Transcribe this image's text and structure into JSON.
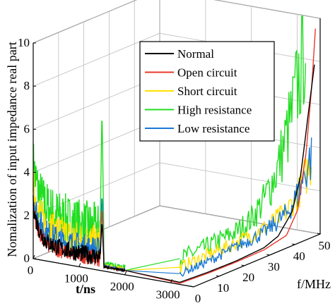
{
  "chart_data": {
    "type": "line",
    "projection": "3d",
    "xlabel": "t/ns",
    "ylabel": "f/MHz",
    "zlabel": "Nomalization of input impedance real part",
    "xlim": [
      0,
      3500
    ],
    "ylim": [
      0,
      50
    ],
    "zlim": [
      0,
      10
    ],
    "x_ticks": [
      "0",
      "1000",
      "2000",
      "3000"
    ],
    "y_ticks": [
      "0",
      "10",
      "20",
      "30",
      "40",
      "50"
    ],
    "z_ticks": [
      "0",
      "2",
      "4",
      "6",
      "8",
      "10"
    ],
    "grid": true,
    "legend_position": "top-right",
    "series": [
      {
        "name": "Normal",
        "color": "#000000",
        "time_trace": {
          "baseline": 0.6,
          "peak_t": 1500,
          "peak": 2.3
        },
        "freq_trace": [
          [
            0,
            0.1
          ],
          [
            10,
            0.1
          ],
          [
            20,
            0.15
          ],
          [
            30,
            0.3
          ],
          [
            35,
            0.6
          ],
          [
            40,
            1.5
          ],
          [
            43,
            3
          ],
          [
            46,
            6
          ],
          [
            48,
            8
          ]
        ]
      },
      {
        "name": "Open circuit",
        "color": "#e8382b",
        "time_trace": {
          "baseline": 0.5,
          "peak_t": 1500,
          "peak": 3.0
        },
        "freq_trace": [
          [
            0,
            0.05
          ],
          [
            10,
            0.05
          ],
          [
            20,
            0.1
          ],
          [
            30,
            0.2
          ],
          [
            38,
            0.5
          ],
          [
            42,
            1.5
          ],
          [
            45,
            4
          ],
          [
            47,
            7
          ],
          [
            48.5,
            10
          ]
        ]
      },
      {
        "name": "Short circuit",
        "color": "#ffe000",
        "time_trace": {
          "baseline": 1.2,
          "peak_t": 1500,
          "peak": 2.6
        },
        "freq_trace": [
          [
            0,
            0.8
          ],
          [
            10,
            0.9
          ],
          [
            20,
            1.0
          ],
          [
            30,
            1.2
          ],
          [
            38,
            1.6
          ],
          [
            42,
            2.2
          ],
          [
            45,
            3.0
          ],
          [
            47,
            3.5
          ]
        ]
      },
      {
        "name": "High resistance",
        "color": "#22dd22",
        "time_trace": {
          "baseline": 1.8,
          "peak_t": 1500,
          "peak": 7.5
        },
        "freq_trace": [
          [
            0,
            1.2
          ],
          [
            10,
            1.3
          ],
          [
            20,
            1.5
          ],
          [
            25,
            1.8
          ],
          [
            30,
            2.5
          ],
          [
            35,
            3.8
          ],
          [
            40,
            6
          ],
          [
            43,
            8
          ],
          [
            45,
            10
          ]
        ]
      },
      {
        "name": "Low resistance",
        "color": "#1a78d4",
        "time_trace": {
          "baseline": 0.9,
          "peak_t": 1500,
          "peak": 3.6
        },
        "freq_trace": [
          [
            0,
            0.5
          ],
          [
            10,
            0.6
          ],
          [
            20,
            0.8
          ],
          [
            30,
            1.0
          ],
          [
            38,
            1.5
          ],
          [
            42,
            2.2
          ],
          [
            45,
            3.2
          ],
          [
            47,
            3.8
          ]
        ]
      }
    ]
  }
}
